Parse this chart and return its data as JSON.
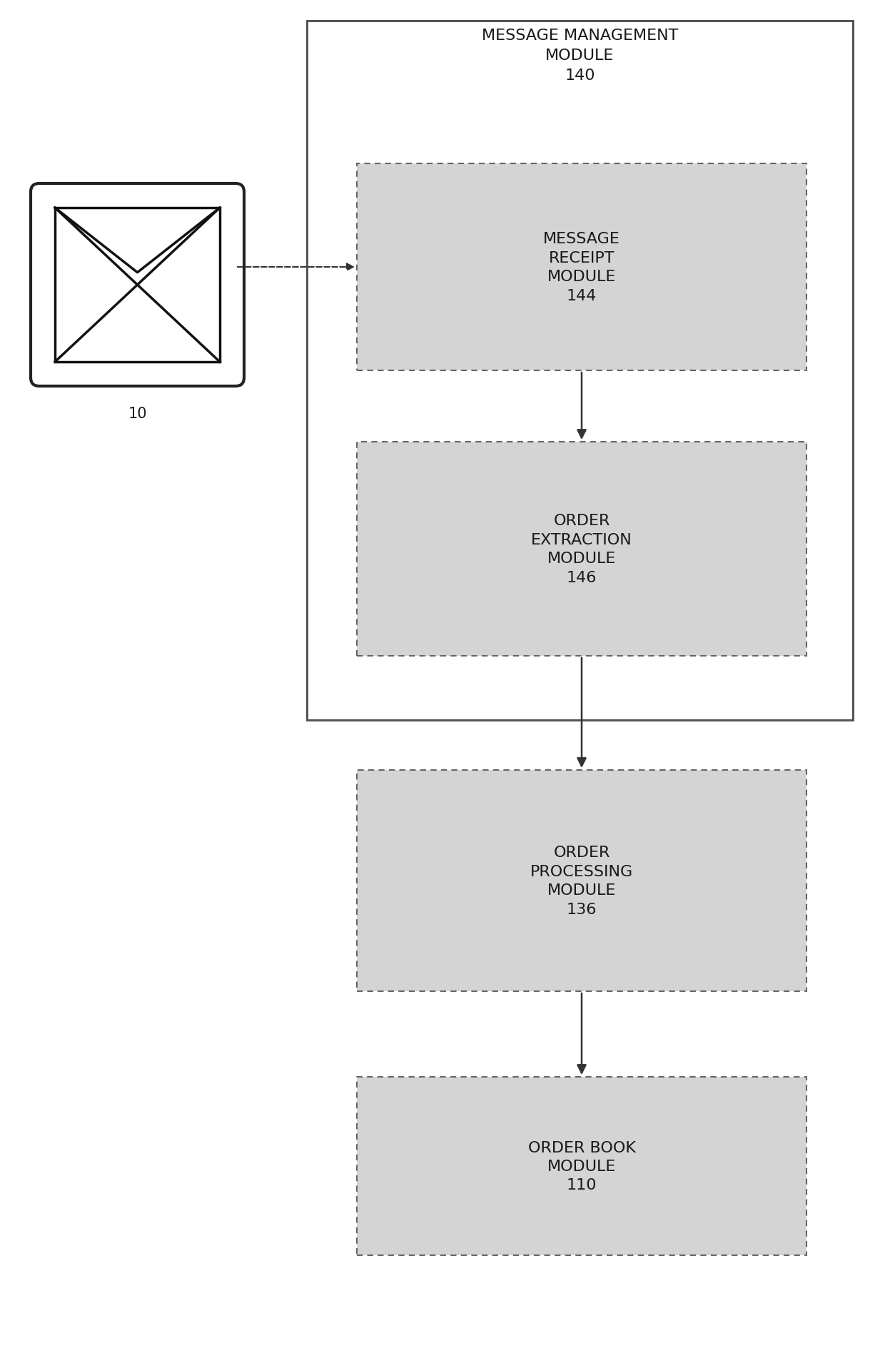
{
  "bg_color": "#ffffff",
  "text_color": "#1a1a1a",
  "fig_w": 12.4,
  "fig_h": 18.9,
  "dpi": 100,
  "envelope_label": "10",
  "outer_box_label_line1": "MESSAGE MANAGEMENT",
  "outer_box_label_line2": "MODULE",
  "outer_box_label_line3": "140",
  "receipt_label_line1": "MESSAGE",
  "receipt_label_line2": "RECEIPT",
  "receipt_label_line3": "MODULE",
  "receipt_label_line4": "144",
  "extraction_label_line1": "ORDER",
  "extraction_label_line2": "EXTRACTION",
  "extraction_label_line3": "MODULE",
  "extraction_label_line4": "146",
  "processing_label_line1": "ORDER",
  "processing_label_line2": "PROCESSING",
  "processing_label_line3": "MODULE",
  "processing_label_line4": "136",
  "orderbook_label_line1": "ORDER BOOK",
  "orderbook_label_line2": "MODULE",
  "orderbook_label_line3": "110",
  "font_size_main": 16,
  "font_size_label": 15
}
